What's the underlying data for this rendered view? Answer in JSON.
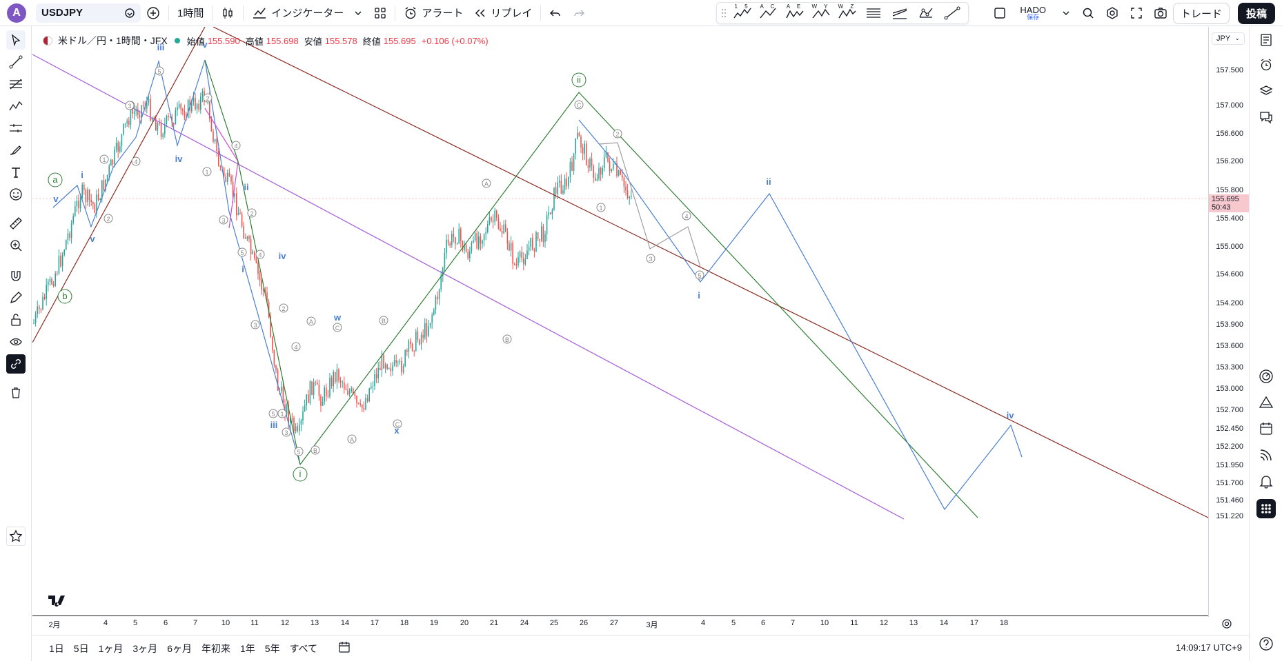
{
  "topbar": {
    "avatar_letter": "A",
    "symbol": "USDJPY",
    "interval": "1時間",
    "indicators": "インジケーター",
    "alert": "アラート",
    "replay": "リプレイ",
    "layout_name": "HADO",
    "layout_saved": "保存",
    "trade": "トレード",
    "post": "投稿"
  },
  "drawing_tools": [
    {
      "icon": "elliott-impulse-icon",
      "tag": "1 5"
    },
    {
      "icon": "elliott-correction-icon",
      "tag": "A C"
    },
    {
      "icon": "elliott-triangle-icon",
      "tag": "A E"
    },
    {
      "icon": "elliott-double-combo-icon",
      "tag": "W Y"
    },
    {
      "icon": "elliott-triple-combo-icon",
      "tag": "W Z"
    }
  ],
  "legend": {
    "title": "米ドル／円・1時間・JFX",
    "open_label": "始値",
    "open": "155.590",
    "high_label": "高値",
    "high": "155.698",
    "low_label": "安値",
    "low": "155.578",
    "close_label": "終値",
    "close": "155.695",
    "change": "+0.106 (+0.07%)"
  },
  "price_axis": {
    "currency": "JPY",
    "labels": [
      "157.500",
      "157.000",
      "156.600",
      "156.200",
      "155.800",
      "155.400",
      "155.000",
      "154.600",
      "154.200",
      "153.900",
      "153.600",
      "153.300",
      "153.000",
      "152.700",
      "152.450",
      "152.200",
      "151.950",
      "151.700",
      "151.460",
      "151.220"
    ],
    "current_price": "155.695",
    "countdown": "50:43"
  },
  "time_axis": [
    "2月",
    "4",
    "5",
    "6",
    "7",
    "10",
    "11",
    "12",
    "13",
    "14",
    "17",
    "18",
    "19",
    "20",
    "21",
    "24",
    "25",
    "26",
    "27",
    "3月",
    "4",
    "5",
    "6",
    "7",
    "10",
    "11",
    "12",
    "13",
    "14",
    "17",
    "18"
  ],
  "bottombar": {
    "ranges": [
      "1日",
      "5日",
      "1ヶ月",
      "3ヶ月",
      "6ヶ月",
      "年初来",
      "1年",
      "5年",
      "すべて"
    ],
    "clock": "14:09:17 UTC+9"
  },
  "chart_data": {
    "type": "candlestick",
    "title": "米ドル／円・1時間・JFX",
    "ylim": [
      151.2,
      157.9
    ],
    "current_price": 155.695,
    "colors": {
      "up": "#26a69a",
      "down": "#ef5350",
      "wave_blue": "#4a7fd0",
      "wave_green": "#2e7d32",
      "channel_brown": "#8b2a20",
      "channel_purple": "#a45ad8",
      "wave_gray": "#9e9e9e"
    },
    "wave_labels": {
      "green_circled": [
        "a",
        "b",
        "i",
        "ii"
      ],
      "blue": [
        "iii",
        "v",
        "iv",
        "v",
        "i",
        "ii",
        "i",
        "iv",
        "iii",
        "w",
        "x",
        "ii",
        "i",
        "iv"
      ],
      "gray_circled": [
        "1",
        "2",
        "3",
        "4",
        "5",
        "A",
        "B",
        "C"
      ]
    }
  }
}
